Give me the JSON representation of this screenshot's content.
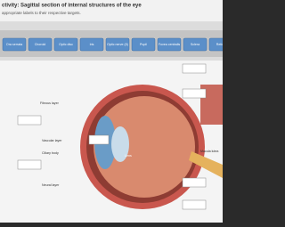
{
  "header": {
    "title": "ctivity: Sagittal section of internal structures of the eye",
    "instruction": "appropriate labels to their respective targets."
  },
  "labels": [
    "Ora serrata",
    "Choroid",
    "Optic disc",
    "Iris",
    "Optic nerve (II)",
    "Pupil",
    "Fovea centralis",
    "Sclera",
    "Retina"
  ],
  "diagram_labels": [
    "Fibrous layer",
    "Vascular layer",
    "Ciliary body",
    "Neural layer",
    "Macula lutea",
    "Lens"
  ]
}
